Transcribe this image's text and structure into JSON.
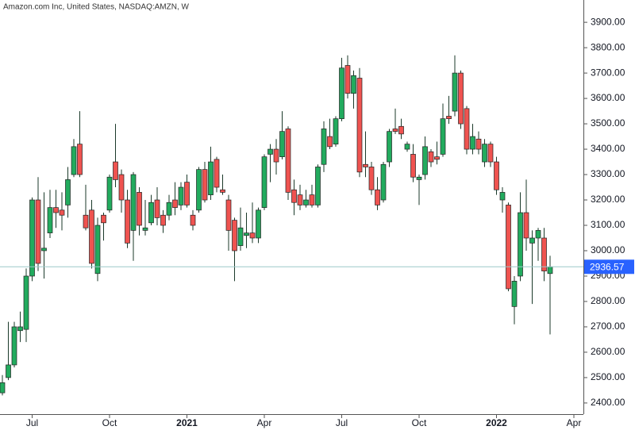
{
  "chart_data": {
    "type": "candlestick",
    "title": "Amazon.com Inc, United States, NASDAQ:AMZN, W",
    "xlim": [
      -0.4,
      97.6
    ],
    "xticks": [
      {
        "value": 5,
        "label": "Jul"
      },
      {
        "value": 18,
        "label": "Oct"
      },
      {
        "value": 31,
        "label": "2021"
      },
      {
        "value": 44,
        "label": "Apr"
      },
      {
        "value": 57,
        "label": "Jul"
      },
      {
        "value": 70,
        "label": "Oct"
      },
      {
        "value": 83,
        "label": "2022"
      },
      {
        "value": 96,
        "label": "Apr"
      }
    ],
    "ylim": [
      2356,
      3941
    ],
    "yticks": [
      {
        "value": 2400,
        "label": "2400.00"
      },
      {
        "value": 2500,
        "label": "2500.00"
      },
      {
        "value": 2600,
        "label": "2600.00"
      },
      {
        "value": 2700,
        "label": "2700.00"
      },
      {
        "value": 2800,
        "label": "2800.00"
      },
      {
        "value": 2900,
        "label": "2900.00"
      },
      {
        "value": 3000,
        "label": "3000.00"
      },
      {
        "value": 3100,
        "label": "3100.00"
      },
      {
        "value": 3200,
        "label": "3200.00"
      },
      {
        "value": 3300,
        "label": "3300.00"
      },
      {
        "value": 3400,
        "label": "3400.00"
      },
      {
        "value": 3500,
        "label": "3500.00"
      },
      {
        "value": 3600,
        "label": "3600.00"
      },
      {
        "value": 3700,
        "label": "3700.00"
      },
      {
        "value": 3800,
        "label": "3800.00"
      },
      {
        "value": 3900,
        "label": "3900.00"
      }
    ],
    "up_color": "#22ab5e",
    "down_color": "#ef5350",
    "last_color": "#2962ff",
    "last_price": 2936.57,
    "open": [
      2440,
      2500,
      2550,
      2685,
      2690,
      2900,
      3200,
      3000,
      3070,
      3170,
      3160,
      3180,
      3300,
      3420,
      3140,
      3160,
      2910,
      3140,
      3160,
      3350,
      3300,
      3200,
      3080,
      3230,
      3080,
      3110,
      3200,
      3140,
      3140,
      3200,
      3180,
      3270,
      3140,
      3160,
      3320,
      3220,
      3360,
      3240,
      3200,
      3120,
      3020,
      3060,
      3070,
      3050,
      3170,
      3380,
      3400,
      3370,
      3480,
      3240,
      3220,
      3180,
      3220,
      3180,
      3340,
      3450,
      3420,
      3520,
      3730,
      3620,
      3680,
      3340,
      3330,
      3240,
      3200,
      3350,
      3480,
      3490,
      3400,
      3380,
      3280,
      3300,
      3390,
      3370,
      3380,
      3530,
      3550,
      3700,
      3560,
      3400,
      3440,
      3350,
      3420,
      3350,
      3200,
      3180,
      2780,
      2900,
      3150,
      3030,
      3050,
      3050,
      2910
    ],
    "high": [
      2510,
      2720,
      2720,
      2760,
      2930,
      3210,
      3290,
      3230,
      3240,
      3240,
      3230,
      3330,
      3440,
      3550,
      3260,
      3200,
      3130,
      3150,
      3300,
      3500,
      3320,
      3240,
      3310,
      3250,
      3200,
      3220,
      3250,
      3160,
      3220,
      3270,
      3270,
      3300,
      3160,
      3330,
      3350,
      3410,
      3370,
      3300,
      3220,
      3130,
      3170,
      3150,
      3190,
      3170,
      3380,
      3420,
      3440,
      3550,
      3490,
      3280,
      3260,
      3240,
      3260,
      3340,
      3510,
      3520,
      3530,
      3760,
      3770,
      3710,
      3720,
      3470,
      3350,
      3290,
      3350,
      3480,
      3560,
      3520,
      3430,
      3420,
      3300,
      3450,
      3400,
      3430,
      3580,
      3610,
      3770,
      3710,
      3570,
      3500,
      3470,
      3440,
      3430,
      3370,
      3250,
      3190,
      2900,
      3230,
      3280,
      3080,
      3090,
      3090,
      2980
    ],
    "low": [
      2430,
      2490,
      2540,
      2640,
      2640,
      2880,
      2920,
      2890,
      3050,
      3090,
      3080,
      3130,
      3290,
      3290,
      3080,
      2930,
      2880,
      3040,
      3150,
      3250,
      3150,
      3010,
      2960,
      3060,
      3060,
      3100,
      3100,
      3070,
      3120,
      3140,
      3160,
      3170,
      3080,
      3150,
      3190,
      3200,
      3230,
      3220,
      3000,
      2880,
      3000,
      3010,
      3030,
      3030,
      3160,
      3270,
      3300,
      3360,
      3200,
      3140,
      3160,
      3170,
      3170,
      3170,
      3310,
      3400,
      3410,
      3510,
      3600,
      3560,
      3290,
      3290,
      3220,
      3160,
      3190,
      3330,
      3460,
      3440,
      3390,
      3270,
      3180,
      3280,
      3330,
      3340,
      3370,
      3500,
      3530,
      3480,
      3380,
      3380,
      3380,
      3330,
      3330,
      3220,
      3150,
      2840,
      2710,
      2880,
      3000,
      2790,
      2960,
      2880,
      2670
    ],
    "close": [
      2480,
      2550,
      2700,
      2700,
      2900,
      3200,
      2950,
      3010,
      3170,
      3150,
      3140,
      3280,
      3410,
      3300,
      3090,
      2950,
      3100,
      3110,
      3290,
      3280,
      3200,
      3030,
      3300,
      3100,
      3090,
      3190,
      3130,
      3100,
      3190,
      3170,
      3250,
      3180,
      3100,
      3320,
      3200,
      3350,
      3250,
      3230,
      3080,
      3000,
      3090,
      3070,
      3050,
      3160,
      3370,
      3400,
      3350,
      3470,
      3230,
      3190,
      3180,
      3200,
      3180,
      3330,
      3480,
      3410,
      3520,
      3720,
      3620,
      3690,
      3310,
      3330,
      3240,
      3180,
      3340,
      3470,
      3470,
      3460,
      3420,
      3290,
      3290,
      3410,
      3350,
      3360,
      3520,
      3520,
      3700,
      3500,
      3400,
      3450,
      3400,
      3420,
      3350,
      3240,
      3230,
      2850,
      2880,
      3150,
      3050,
      3050,
      3080,
      2920,
      2936.57
    ]
  }
}
